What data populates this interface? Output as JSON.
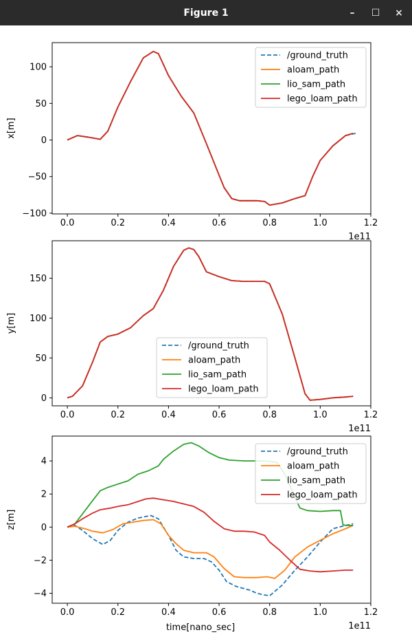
{
  "window": {
    "title": "Figure 1",
    "minimize_label": "–",
    "maximize_label": "☐",
    "close_label": "×"
  },
  "colors": {
    "ground_truth": "#1f77b4",
    "aloam_path": "#ff7f0e",
    "lio_sam_path": "#2ca02c",
    "lego_loam_path": "#d62728"
  },
  "chart_data": [
    {
      "type": "line",
      "ylabel": "x[m]",
      "xlabel": "",
      "xlim": [
        -0.06,
        1.2
      ],
      "ylim": [
        -101,
        133
      ],
      "xticks": [
        0.0,
        0.2,
        0.4,
        0.6,
        0.8,
        1.0,
        1.2
      ],
      "xtick_labels": [
        "0.0",
        "0.2",
        "0.4",
        "0.6",
        "0.8",
        "1.0",
        "1.2"
      ],
      "yticks": [
        -100,
        -50,
        0,
        50,
        100
      ],
      "ytick_labels": [
        "−100",
        "−50",
        "0",
        "50",
        "100"
      ],
      "offset_label": "1e11",
      "legend_position": "upper right",
      "series": [
        {
          "name": "/ground_truth",
          "style": "dashed",
          "x": [
            0,
            0.04,
            0.08,
            0.13,
            0.16,
            0.2,
            0.25,
            0.3,
            0.34,
            0.36,
            0.4,
            0.45,
            0.5,
            0.55,
            0.6,
            0.62,
            0.65,
            0.68,
            0.7,
            0.75,
            0.78,
            0.8,
            0.85,
            0.9,
            0.94,
            0.97,
            1.0,
            1.05,
            1.1,
            1.14
          ],
          "y": [
            0,
            6,
            4,
            1,
            12,
            45,
            80,
            112,
            121,
            118,
            88,
            60,
            37,
            -5,
            -48,
            -65,
            -80,
            -83,
            -83,
            -83,
            -84,
            -89,
            -86,
            -80,
            -76,
            -50,
            -28,
            -8,
            6,
            9
          ]
        },
        {
          "name": "aloam_path",
          "style": "solid",
          "x": [
            0,
            0.04,
            0.08,
            0.13,
            0.16,
            0.2,
            0.25,
            0.3,
            0.34,
            0.36,
            0.4,
            0.45,
            0.5,
            0.55,
            0.6,
            0.62,
            0.65,
            0.68,
            0.7,
            0.75,
            0.78,
            0.8,
            0.85,
            0.9,
            0.94,
            0.97,
            1.0,
            1.05,
            1.1,
            1.13
          ],
          "y": [
            0,
            6,
            4,
            1,
            12,
            45,
            80,
            112,
            121,
            118,
            88,
            60,
            37,
            -5,
            -48,
            -65,
            -80,
            -83,
            -83,
            -83,
            -84,
            -89,
            -86,
            -80,
            -76,
            -50,
            -28,
            -8,
            6,
            9
          ]
        },
        {
          "name": "lio_sam_path",
          "style": "solid",
          "x": [
            0,
            0.04,
            0.08,
            0.13,
            0.16,
            0.2,
            0.25,
            0.3,
            0.34,
            0.36,
            0.4,
            0.45,
            0.5,
            0.55,
            0.6,
            0.62,
            0.65,
            0.68,
            0.7,
            0.75,
            0.78,
            0.8,
            0.85,
            0.9,
            0.94,
            0.97,
            1.0,
            1.05,
            1.1,
            1.13
          ],
          "y": [
            0,
            6,
            4,
            1,
            12,
            45,
            80,
            112,
            121,
            118,
            88,
            60,
            37,
            -5,
            -48,
            -65,
            -80,
            -83,
            -83,
            -83,
            -84,
            -89,
            -86,
            -80,
            -76,
            -50,
            -28,
            -8,
            6,
            9
          ]
        },
        {
          "name": "lego_loam_path",
          "style": "solid",
          "x": [
            0,
            0.04,
            0.08,
            0.13,
            0.16,
            0.2,
            0.25,
            0.3,
            0.34,
            0.36,
            0.4,
            0.45,
            0.5,
            0.55,
            0.6,
            0.62,
            0.65,
            0.68,
            0.7,
            0.75,
            0.78,
            0.8,
            0.85,
            0.9,
            0.94,
            0.97,
            1.0,
            1.05,
            1.1,
            1.13
          ],
          "y": [
            0,
            6,
            4,
            1,
            12,
            45,
            80,
            112,
            121,
            118,
            88,
            60,
            37,
            -5,
            -48,
            -65,
            -80,
            -83,
            -83,
            -83,
            -84,
            -89,
            -86,
            -80,
            -76,
            -50,
            -28,
            -8,
            6,
            9
          ]
        }
      ]
    },
    {
      "type": "line",
      "ylabel": "y[m]",
      "xlabel": "",
      "xlim": [
        -0.06,
        1.2
      ],
      "ylim": [
        -10,
        197
      ],
      "xticks": [
        0.0,
        0.2,
        0.4,
        0.6,
        0.8,
        1.0,
        1.2
      ],
      "xtick_labels": [
        "0.0",
        "0.2",
        "0.4",
        "0.6",
        "0.8",
        "1.0",
        "1.2"
      ],
      "yticks": [
        0,
        50,
        100,
        150
      ],
      "ytick_labels": [
        "0",
        "50",
        "100",
        "150"
      ],
      "offset_label": "1e11",
      "legend_position": "lower center",
      "series": [
        {
          "name": "/ground_truth",
          "style": "dashed",
          "x": [
            0,
            0.02,
            0.06,
            0.1,
            0.13,
            0.16,
            0.2,
            0.25,
            0.3,
            0.34,
            0.38,
            0.42,
            0.46,
            0.48,
            0.5,
            0.52,
            0.55,
            0.6,
            0.65,
            0.7,
            0.75,
            0.78,
            0.8,
            0.85,
            0.9,
            0.94,
            0.96,
            1.0,
            1.05,
            1.1,
            1.13
          ],
          "y": [
            0,
            2,
            15,
            45,
            70,
            77,
            80,
            88,
            103,
            112,
            135,
            165,
            185,
            188,
            186,
            177,
            158,
            152,
            147,
            146,
            146,
            146,
            143,
            105,
            50,
            5,
            -3,
            -2,
            0,
            1,
            2
          ]
        },
        {
          "name": "aloam_path",
          "style": "solid",
          "x": [
            0,
            0.02,
            0.06,
            0.1,
            0.13,
            0.16,
            0.2,
            0.25,
            0.3,
            0.34,
            0.38,
            0.42,
            0.46,
            0.48,
            0.5,
            0.52,
            0.55,
            0.6,
            0.65,
            0.7,
            0.75,
            0.78,
            0.8,
            0.85,
            0.9,
            0.94,
            0.96,
            1.0,
            1.05,
            1.1,
            1.13
          ],
          "y": [
            0,
            2,
            15,
            45,
            70,
            77,
            80,
            88,
            103,
            112,
            135,
            165,
            185,
            188,
            186,
            177,
            158,
            152,
            147,
            146,
            146,
            146,
            143,
            105,
            50,
            5,
            -3,
            -2,
            0,
            1,
            2
          ]
        },
        {
          "name": "lio_sam_path",
          "style": "solid",
          "x": [
            0,
            0.02,
            0.06,
            0.1,
            0.13,
            0.16,
            0.2,
            0.25,
            0.3,
            0.34,
            0.38,
            0.42,
            0.46,
            0.48,
            0.5,
            0.52,
            0.55,
            0.6,
            0.65,
            0.7,
            0.75,
            0.78,
            0.8,
            0.85,
            0.9,
            0.94,
            0.96,
            1.0,
            1.05,
            1.1,
            1.13
          ],
          "y": [
            0,
            2,
            15,
            45,
            70,
            77,
            80,
            88,
            103,
            112,
            135,
            165,
            185,
            188,
            186,
            177,
            158,
            152,
            147,
            146,
            146,
            146,
            143,
            105,
            50,
            5,
            -3,
            -2,
            0,
            1,
            2
          ]
        },
        {
          "name": "lego_loam_path",
          "style": "solid",
          "x": [
            0,
            0.02,
            0.06,
            0.1,
            0.13,
            0.16,
            0.2,
            0.25,
            0.3,
            0.34,
            0.38,
            0.42,
            0.46,
            0.48,
            0.5,
            0.52,
            0.55,
            0.6,
            0.65,
            0.7,
            0.75,
            0.78,
            0.8,
            0.85,
            0.9,
            0.94,
            0.96,
            1.0,
            1.05,
            1.1,
            1.13
          ],
          "y": [
            0,
            2,
            15,
            45,
            70,
            77,
            80,
            88,
            103,
            112,
            135,
            165,
            185,
            188,
            186,
            177,
            158,
            152,
            147,
            146,
            146,
            146,
            143,
            105,
            50,
            5,
            -3,
            -2,
            0,
            1,
            2
          ]
        }
      ]
    },
    {
      "type": "line",
      "ylabel": "z[m]",
      "xlabel": "time[nano_sec]",
      "xlim": [
        -0.06,
        1.2
      ],
      "ylim": [
        -4.6,
        5.5
      ],
      "xticks": [
        0.0,
        0.2,
        0.4,
        0.6,
        0.8,
        1.0,
        1.2
      ],
      "xtick_labels": [
        "0.0",
        "0.2",
        "0.4",
        "0.6",
        "0.8",
        "1.0",
        "1.2"
      ],
      "yticks": [
        -4,
        -2,
        0,
        2,
        4
      ],
      "ytick_labels": [
        "−4",
        "−2",
        "0",
        "2",
        "4"
      ],
      "offset_label": "1e11",
      "legend_position": "upper right",
      "series": [
        {
          "name": "/ground_truth",
          "style": "dashed",
          "x": [
            0,
            0.03,
            0.06,
            0.1,
            0.14,
            0.17,
            0.2,
            0.24,
            0.28,
            0.33,
            0.36,
            0.4,
            0.43,
            0.46,
            0.5,
            0.54,
            0.57,
            0.6,
            0.63,
            0.67,
            0.72,
            0.75,
            0.78,
            0.8,
            0.85,
            0.9,
            0.95,
            1.0,
            1.05,
            1.1,
            1.13
          ],
          "y": [
            0,
            0.1,
            -0.2,
            -0.7,
            -1.05,
            -0.8,
            -0.2,
            0.3,
            0.55,
            0.7,
            0.5,
            -0.5,
            -1.4,
            -1.8,
            -1.9,
            -1.9,
            -2.1,
            -2.6,
            -3.3,
            -3.6,
            -3.8,
            -4.0,
            -4.1,
            -4.15,
            -3.5,
            -2.6,
            -1.8,
            -0.9,
            -0.1,
            0.1,
            0.2
          ]
        },
        {
          "name": "aloam_path",
          "style": "solid",
          "x": [
            0,
            0.03,
            0.07,
            0.1,
            0.14,
            0.18,
            0.22,
            0.26,
            0.3,
            0.34,
            0.37,
            0.4,
            0.43,
            0.46,
            0.5,
            0.55,
            0.58,
            0.62,
            0.66,
            0.7,
            0.75,
            0.79,
            0.82,
            0.86,
            0.9,
            0.95,
            1.0,
            1.05,
            1.1,
            1.13
          ],
          "y": [
            0,
            0.05,
            -0.1,
            -0.25,
            -0.35,
            -0.15,
            0.2,
            0.3,
            0.4,
            0.45,
            0.2,
            -0.5,
            -1.0,
            -1.4,
            -1.55,
            -1.55,
            -1.8,
            -2.5,
            -3.0,
            -3.05,
            -3.05,
            -3.0,
            -3.1,
            -2.6,
            -1.8,
            -1.2,
            -0.8,
            -0.4,
            -0.1,
            0.1
          ]
        },
        {
          "name": "lio_sam_path",
          "style": "solid",
          "x": [
            0,
            0.03,
            0.06,
            0.1,
            0.13,
            0.16,
            0.2,
            0.24,
            0.28,
            0.32,
            0.36,
            0.38,
            0.42,
            0.46,
            0.49,
            0.52,
            0.56,
            0.6,
            0.64,
            0.7,
            0.75,
            0.8,
            0.83,
            0.86,
            0.9,
            0.92,
            0.95,
            1.0,
            1.05,
            1.08,
            1.09,
            1.1,
            1.13
          ],
          "y": [
            0,
            0.2,
            0.8,
            1.6,
            2.2,
            2.4,
            2.6,
            2.8,
            3.2,
            3.4,
            3.7,
            4.1,
            4.6,
            5.0,
            5.1,
            4.9,
            4.5,
            4.2,
            4.05,
            4.0,
            4.0,
            3.98,
            3.9,
            3.2,
            1.8,
            1.15,
            1.0,
            0.95,
            1.0,
            1.0,
            0.15,
            0.1,
            0.1
          ]
        },
        {
          "name": "lego_loam_path",
          "style": "solid",
          "x": [
            0,
            0.03,
            0.06,
            0.1,
            0.13,
            0.17,
            0.2,
            0.24,
            0.28,
            0.31,
            0.34,
            0.38,
            0.42,
            0.46,
            0.5,
            0.54,
            0.58,
            0.62,
            0.66,
            0.7,
            0.74,
            0.78,
            0.8,
            0.84,
            0.88,
            0.92,
            0.96,
            1.0,
            1.05,
            1.1,
            1.13
          ],
          "y": [
            0,
            0.2,
            0.5,
            0.85,
            1.05,
            1.15,
            1.25,
            1.35,
            1.55,
            1.7,
            1.75,
            1.65,
            1.55,
            1.4,
            1.25,
            0.9,
            0.35,
            -0.1,
            -0.25,
            -0.25,
            -0.3,
            -0.5,
            -0.9,
            -1.4,
            -2.0,
            -2.55,
            -2.65,
            -2.7,
            -2.65,
            -2.6,
            -2.6
          ]
        }
      ]
    }
  ]
}
